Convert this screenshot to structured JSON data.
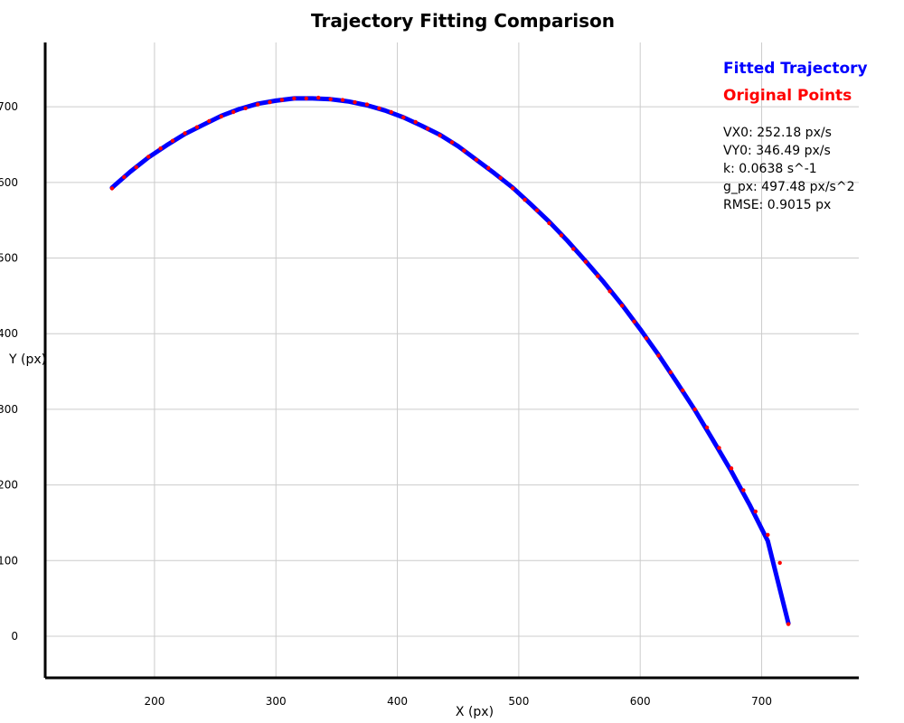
{
  "chart_data": {
    "type": "line",
    "title": "Trajectory Fitting Comparison",
    "xlabel": "X (px)",
    "ylabel": "Y (px)",
    "xlim": [
      110,
      780
    ],
    "ylim": [
      -55,
      785
    ],
    "xticks": [
      200,
      300,
      400,
      500,
      600,
      700
    ],
    "yticks": [
      0,
      100,
      200,
      300,
      400,
      500,
      600,
      700
    ],
    "grid": true,
    "legend_position": "top-right",
    "series": [
      {
        "name": "Fitted Trajectory",
        "color": "#0000ff",
        "style": "line",
        "x": [
          165,
          180,
          195,
          210,
          225,
          240,
          255,
          270,
          285,
          300,
          315,
          330,
          345,
          360,
          375,
          390,
          405,
          420,
          435,
          450,
          465,
          480,
          495,
          510,
          525,
          540,
          555,
          570,
          585,
          600,
          615,
          630,
          645,
          660,
          675,
          690,
          705,
          722
        ],
        "y": [
          593,
          614,
          633,
          649,
          664,
          676,
          688,
          697,
          704,
          708,
          711,
          711,
          710,
          707,
          702,
          695,
          686,
          675,
          663,
          648,
          630,
          612,
          593,
          571,
          548,
          523,
          496,
          468,
          438,
          406,
          372,
          336,
          299,
          259,
          218,
          174,
          126,
          17
        ]
      },
      {
        "name": "Original Points",
        "color": "#ff0000",
        "style": "points",
        "x": [
          165,
          175,
          185,
          195,
          205,
          215,
          225,
          235,
          245,
          255,
          265,
          275,
          285,
          295,
          305,
          315,
          325,
          335,
          345,
          355,
          365,
          375,
          385,
          395,
          405,
          415,
          425,
          435,
          445,
          455,
          465,
          475,
          485,
          495,
          505,
          515,
          525,
          535,
          545,
          555,
          565,
          575,
          585,
          595,
          605,
          615,
          625,
          635,
          645,
          655,
          665,
          675,
          685,
          695,
          705,
          715,
          722
        ],
        "y": [
          592,
          607,
          620,
          634,
          645,
          655,
          665,
          673,
          681,
          687,
          693,
          698,
          703,
          706,
          709,
          711,
          711,
          712,
          710,
          709,
          706,
          703,
          698,
          693,
          686,
          680,
          671,
          662,
          653,
          642,
          630,
          619,
          606,
          592,
          577,
          563,
          546,
          530,
          512,
          495,
          476,
          456,
          437,
          416,
          394,
          371,
          349,
          325,
          300,
          276,
          249,
          222,
          193,
          165,
          134,
          97,
          16
        ]
      }
    ],
    "legend": [
      {
        "label": "Fitted Trajectory",
        "color": "#0000ff"
      },
      {
        "label": "Original Points",
        "color": "#ff0000"
      }
    ],
    "annotations": [
      "VX0: 252.18 px/s",
      "VY0: 346.49 px/s",
      "k: 0.0638 s^-1",
      "g_px: 497.48 px/s^2",
      "RMSE: 0.9015 px"
    ]
  }
}
